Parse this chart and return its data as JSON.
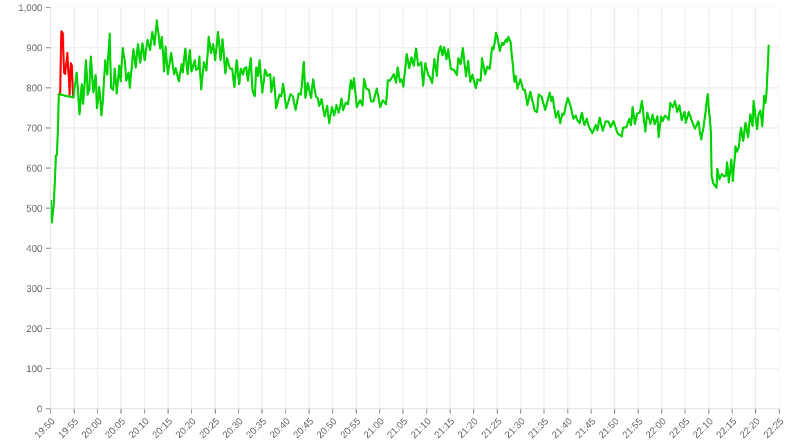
{
  "chart_data": {
    "type": "line",
    "grid": true,
    "marker": "none",
    "line_style": "solid",
    "xlim": [
      19.833,
      22.417
    ],
    "ylim": [
      0,
      1000
    ],
    "yticks": [
      0,
      100,
      200,
      300,
      400,
      500,
      600,
      700,
      800,
      900,
      {
        "value": 1000,
        "label": "1,000"
      }
    ],
    "xticks": [
      {
        "value": 19.833,
        "label": "19:50"
      },
      {
        "value": 19.917,
        "label": "19:55"
      },
      {
        "value": 20,
        "label": "20:00"
      },
      {
        "value": 20.083,
        "label": "20:05"
      },
      {
        "value": 20.167,
        "label": "20:10"
      },
      {
        "value": 20.25,
        "label": "20:15"
      },
      {
        "value": 20.333,
        "label": "20:20"
      },
      {
        "value": 20.417,
        "label": "20:25"
      },
      {
        "value": 20.5,
        "label": "20:30"
      },
      {
        "value": 20.583,
        "label": "20:35"
      },
      {
        "value": 20.667,
        "label": "20:40"
      },
      {
        "value": 20.75,
        "label": "20:45"
      },
      {
        "value": 20.833,
        "label": "20:50"
      },
      {
        "value": 20.917,
        "label": "20:55"
      },
      {
        "value": 21,
        "label": "21:00"
      },
      {
        "value": 21.083,
        "label": "21:05"
      },
      {
        "value": 21.167,
        "label": "21:10"
      },
      {
        "value": 21.25,
        "label": "21:15"
      },
      {
        "value": 21.333,
        "label": "21:20"
      },
      {
        "value": 21.417,
        "label": "21:25"
      },
      {
        "value": 21.5,
        "label": "21:30"
      },
      {
        "value": 21.583,
        "label": "21:35"
      },
      {
        "value": 21.667,
        "label": "21:40"
      },
      {
        "value": 21.75,
        "label": "21:45"
      },
      {
        "value": 21.833,
        "label": "21:50"
      },
      {
        "value": 21.917,
        "label": "21:55"
      },
      {
        "value": 22,
        "label": "22:00"
      },
      {
        "value": 22.083,
        "label": "22:05"
      },
      {
        "value": 22.167,
        "label": "22:10"
      },
      {
        "value": 22.25,
        "label": "22:15"
      },
      {
        "value": 22.333,
        "label": "22:20"
      },
      {
        "value": 22.417,
        "label": "22:25"
      }
    ],
    "series": [
      {
        "color": "#ff0000",
        "x": [
          19.863,
          19.867,
          19.872,
          19.877,
          19.881,
          19.885,
          19.893,
          19.901,
          19.905,
          19.909,
          19.913
        ],
        "values": [
          784,
          783,
          941,
          935,
          838,
          835,
          887,
          783,
          861,
          855,
          779
        ]
      },
      {
        "color": "#00d200",
        "x": [
          19.834,
          19.838,
          19.846,
          19.852,
          19.856,
          19.863,
          19.914,
          19.926,
          19.936,
          19.944,
          19.949,
          19.959,
          19.965,
          19.971,
          19.976,
          19.985,
          19.993,
          19.998,
          20.006,
          20.014,
          20.02,
          20.027,
          20.034,
          20.043,
          20.048,
          20.055,
          20.061,
          20.068,
          20.077,
          20.082,
          20.089,
          20.096,
          20.102,
          20.11,
          20.114,
          20.127,
          20.135,
          20.143,
          20.151,
          20.159,
          20.167,
          20.177,
          20.186,
          20.194,
          20.202,
          20.21,
          20.222,
          20.228,
          20.236,
          20.241,
          20.249,
          20.261,
          20.271,
          20.277,
          20.288,
          20.298,
          20.302,
          20.311,
          20.319,
          20.327,
          20.333,
          20.345,
          20.349,
          20.357,
          20.361,
          20.367,
          20.377,
          20.386,
          20.394,
          20.402,
          20.41,
          20.417,
          20.427,
          20.436,
          20.443,
          20.453,
          20.459,
          20.469,
          20.477,
          20.485,
          20.493,
          20.502,
          20.508,
          20.516,
          20.52,
          20.527,
          20.533,
          20.543,
          20.549,
          20.557,
          20.563,
          20.569,
          20.574,
          20.584,
          20.594,
          20.602,
          20.612,
          20.616,
          20.625,
          20.633,
          20.645,
          20.651,
          20.658,
          20.669,
          20.684,
          20.692,
          20.702,
          20.713,
          20.721,
          20.731,
          20.737,
          20.745,
          20.753,
          20.757,
          20.764,
          20.774,
          20.78,
          20.786,
          20.794,
          20.805,
          20.814,
          20.821,
          20.831,
          20.839,
          20.847,
          20.855,
          20.865,
          20.87,
          20.88,
          20.888,
          20.898,
          20.903,
          20.909,
          20.919,
          20.931,
          20.939,
          20.945,
          20.953,
          20.962,
          20.97,
          20.978,
          20.99,
          21.002,
          21.011,
          21.023,
          21.029,
          21.037,
          21.05,
          21.058,
          21.064,
          21.072,
          21.078,
          21.084,
          21.096,
          21.105,
          21.113,
          21.121,
          21.129,
          21.137,
          21.148,
          21.154,
          21.162,
          21.172,
          21.178,
          21.186,
          21.194,
          21.203,
          21.208,
          21.216,
          21.223,
          21.229,
          21.237,
          21.243,
          21.252,
          21.264,
          21.274,
          21.279,
          21.287,
          21.295,
          21.306,
          21.314,
          21.321,
          21.329,
          21.341,
          21.347,
          21.358,
          21.363,
          21.374,
          21.382,
          21.39,
          21.399,
          21.404,
          21.413,
          21.419,
          21.426,
          21.434,
          21.439,
          21.448,
          21.452,
          21.456,
          21.464,
          21.478,
          21.483,
          21.488,
          21.499,
          21.509,
          21.515,
          21.524,
          21.534,
          21.543,
          21.55,
          21.558,
          21.564,
          21.574,
          21.587,
          21.603,
          21.609,
          21.613,
          21.625,
          21.633,
          21.64,
          21.648,
          21.654,
          21.66,
          21.667,
          21.676,
          21.687,
          21.695,
          21.701,
          21.709,
          21.717,
          21.726,
          21.734,
          21.742,
          21.754,
          21.766,
          21.772,
          21.78,
          21.791,
          21.801,
          21.811,
          21.819,
          21.829,
          21.844,
          21.859,
          21.862,
          21.875,
          21.885,
          21.891,
          21.897,
          21.905,
          21.913,
          21.922,
          21.93,
          21.942,
          21.949,
          21.96,
          21.968,
          21.975,
          21.985,
          21.989,
          21.998,
          22.003,
          22.012,
          22.02,
          22.025,
          22.03,
          22.04,
          22.047,
          22.055,
          22.063,
          22.071,
          22.081,
          22.085,
          22.096,
          22.105,
          22.118,
          22.13,
          22.14,
          22.15,
          22.163,
          22.175,
          22.177,
          22.183,
          22.194,
          22.197,
          22.205,
          22.213,
          22.221,
          22.228,
          22.232,
          22.238,
          22.247,
          22.252,
          22.262,
          22.267,
          22.273,
          22.281,
          22.289,
          22.297,
          22.306,
          22.314,
          22.322,
          22.326,
          22.338,
          22.344,
          22.35,
          22.357,
          22.363,
          22.368,
          22.373,
          22.379
        ],
        "values": [
          518,
          464,
          522,
          631,
          633,
          784,
          776,
          838,
          734,
          809,
          760,
          869,
          783,
          798,
          878,
          789,
          832,
          749,
          802,
          731,
          783,
          869,
          833,
          935,
          800,
          795,
          848,
          786,
          855,
          816,
          899,
          869,
          818,
          838,
          800,
          896,
          851,
          909,
          863,
          911,
          869,
          920,
          894,
          939,
          907,
          968,
          898,
          927,
          841,
          903,
          834,
          887,
          834,
          849,
          816,
          859,
          838,
          898,
          834,
          894,
          841,
          869,
          845,
          848,
          878,
          796,
          864,
          843,
          927,
          887,
          909,
          869,
          939,
          869,
          921,
          836,
          874,
          848,
          848,
          802,
          869,
          809,
          848,
          833,
          848,
          851,
          818,
          874,
          795,
          779,
          851,
          830,
          869,
          788,
          845,
          830,
          834,
          790,
          826,
          749,
          783,
          779,
          810,
          749,
          784,
          779,
          745,
          786,
          783,
          865,
          775,
          812,
          786,
          775,
          821,
          778,
          775,
          755,
          772,
          729,
          755,
          712,
          752,
          731,
          757,
          738,
          773,
          744,
          763,
          759,
          819,
          798,
          824,
          752,
          769,
          756,
          822,
          798,
          795,
          766,
          766,
          798,
          752,
          769,
          759,
          819,
          818,
          834,
          813,
          851,
          815,
          821,
          803,
          884,
          849,
          876,
          855,
          898,
          855,
          864,
          805,
          861,
          832,
          827,
          812,
          872,
          830,
          884,
          904,
          881,
          901,
          871,
          896,
          848,
          844,
          832,
          874,
          859,
          899,
          829,
          867,
          815,
          833,
          799,
          821,
          818,
          874,
          833,
          853,
          847,
          901,
          896,
          937,
          921,
          892,
          912,
          907,
          921,
          915,
          927,
          915,
          815,
          829,
          798,
          821,
          795,
          795,
          757,
          790,
          764,
          743,
          740,
          783,
          778,
          745,
          788,
          767,
          778,
          726,
          742,
          712,
          736,
          733,
          756,
          775,
          757,
          723,
          731,
          719,
          712,
          738,
          707,
          723,
          703,
          687,
          707,
          694,
          726,
          693,
          716,
          716,
          702,
          717,
          686,
          679,
          700,
          702,
          723,
          707,
          752,
          710,
          736,
          738,
          767,
          691,
          738,
          710,
          733,
          709,
          729,
          677,
          729,
          717,
          731,
          725,
          720,
          762,
          752,
          767,
          740,
          756,
          720,
          740,
          713,
          740,
          721,
          698,
          716,
          671,
          709,
          784,
          686,
          579,
          562,
          551,
          598,
          572,
          585,
          579,
          581,
          614,
          564,
          621,
          568,
          654,
          641,
          651,
          700,
          668,
          713,
          677,
          734,
          705,
          767,
          697,
          736,
          743,
          704,
          780,
          763,
          800,
          905
        ]
      }
    ]
  }
}
